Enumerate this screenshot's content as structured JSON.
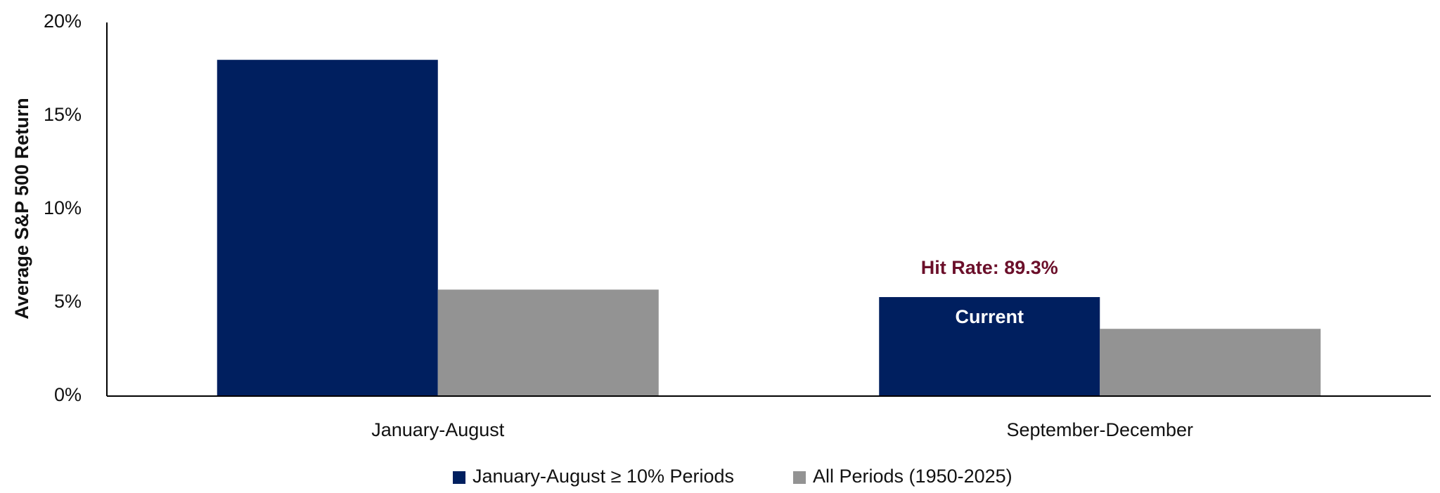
{
  "chart_data": {
    "type": "bar",
    "y_label": "Average S&P 500 Return",
    "categories": [
      "January-August",
      "September-December"
    ],
    "series": [
      {
        "name": "January-August ≥ 10% Periods",
        "color": "#001f5f",
        "values": [
          18.0,
          5.3
        ]
      },
      {
        "name": "All Periods (1950-2025)",
        "color": "#939393",
        "values": [
          5.7,
          3.6
        ]
      }
    ],
    "ylim": [
      0,
      20
    ],
    "yticks": [
      {
        "value": 0,
        "label": "0%"
      },
      {
        "value": 5,
        "label": "5%"
      },
      {
        "value": 10,
        "label": "10%"
      },
      {
        "value": 15,
        "label": "15%"
      },
      {
        "value": 20,
        "label": "20%"
      }
    ],
    "annotations": [
      "Hit Rate: 89.3%",
      "Current"
    ],
    "grid": false,
    "legend": "bottom"
  }
}
